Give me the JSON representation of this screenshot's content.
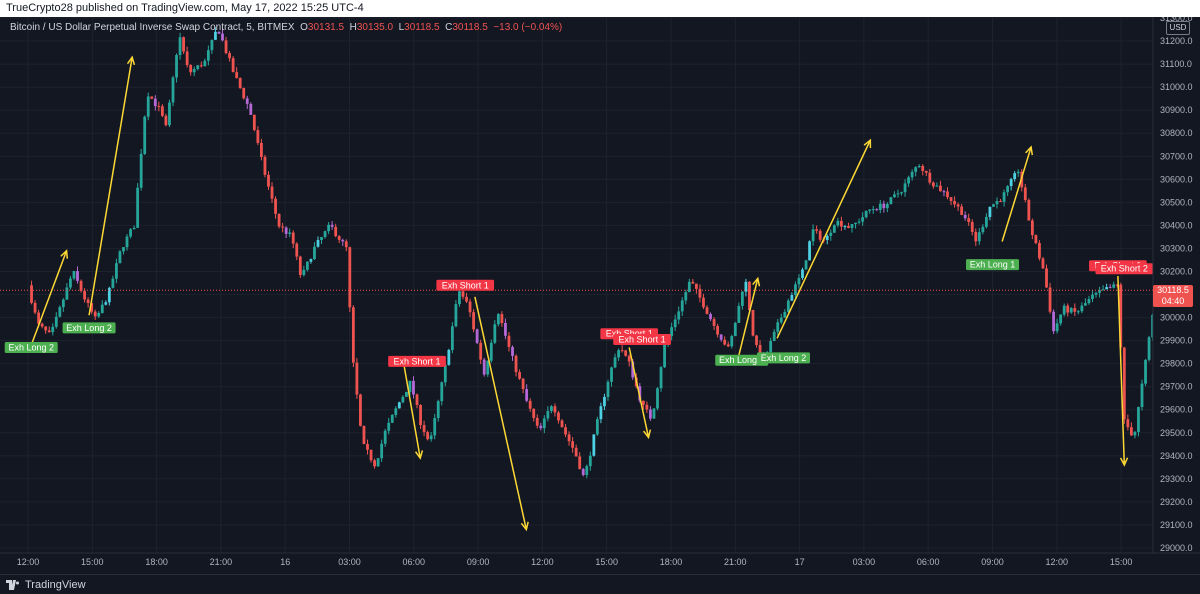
{
  "header": {
    "publisher_line": "TrueCrypto28 published on TradingView.com, May 17, 2022 15:25 UTC-4"
  },
  "legend": {
    "symbol": "Bitcoin / US Dollar Perpetual Inverse Swap Contract, 5, BITMEX",
    "o_label": "O",
    "o_value": "30131.5",
    "h_label": "H",
    "h_value": "30135.0",
    "l_label": "L",
    "l_value": "30118.5",
    "c_label": "C",
    "c_value": "30118.5",
    "change": "−13.0 (−0.04%)"
  },
  "currency": "USD",
  "last_price": {
    "value": "30118.5",
    "countdown": "04:40"
  },
  "footer": {
    "brand": "TradingView"
  },
  "colors": {
    "background": "#131722",
    "up": "#26a69a",
    "down": "#ef5350",
    "up_alt": "#4dd0e1",
    "down_alt": "#b469d6",
    "arrow": "#fdd835",
    "long_label": "#4caf50",
    "short_label": "#f23645"
  },
  "chart_data": {
    "type": "candlestick",
    "title": "Bitcoin / US Dollar Perpetual Inverse Swap Contract, 5, BITMEX",
    "ylim": [
      29000,
      31300
    ],
    "y_ticks": [
      "29000.0",
      "29100.0",
      "29200.0",
      "29300.0",
      "29400.0",
      "29500.0",
      "29600.0",
      "29700.0",
      "29800.0",
      "29900.0",
      "30000.0",
      "30100.0",
      "30200.0",
      "30300.0",
      "30400.0",
      "30500.0",
      "30600.0",
      "30700.0",
      "30800.0",
      "30900.0",
      "31000.0",
      "31100.0",
      "31200.0",
      "31300.0"
    ],
    "x_ticks": [
      "12:00",
      "15:00",
      "18:00",
      "21:00",
      "16",
      "03:00",
      "06:00",
      "09:00",
      "12:00",
      "15:00",
      "18:00",
      "21:00",
      "17",
      "03:00",
      "06:00",
      "09:00",
      "12:00",
      "15:00"
    ],
    "x_range": [
      0,
      17.6
    ],
    "price_path": [
      [
        0.0,
        30140
      ],
      [
        0.15,
        29970
      ],
      [
        0.35,
        29920
      ],
      [
        0.5,
        30040
      ],
      [
        0.7,
        30200
      ],
      [
        0.9,
        30070
      ],
      [
        1.05,
        29990
      ],
      [
        1.25,
        30100
      ],
      [
        1.45,
        30300
      ],
      [
        1.65,
        30400
      ],
      [
        1.85,
        30980
      ],
      [
        2.05,
        30900
      ],
      [
        2.15,
        30820
      ],
      [
        2.35,
        31230
      ],
      [
        2.5,
        31060
      ],
      [
        2.75,
        31110
      ],
      [
        2.95,
        31260
      ],
      [
        3.2,
        31060
      ],
      [
        3.45,
        30900
      ],
      [
        3.65,
        30660
      ],
      [
        3.9,
        30400
      ],
      [
        4.1,
        30350
      ],
      [
        4.25,
        30170
      ],
      [
        4.45,
        30300
      ],
      [
        4.7,
        30400
      ],
      [
        4.95,
        30300
      ],
      [
        5.05,
        29820
      ],
      [
        5.2,
        29450
      ],
      [
        5.4,
        29360
      ],
      [
        5.55,
        29500
      ],
      [
        5.75,
        29620
      ],
      [
        5.95,
        29720
      ],
      [
        6.1,
        29550
      ],
      [
        6.25,
        29450
      ],
      [
        6.5,
        29800
      ],
      [
        6.7,
        30120
      ],
      [
        6.85,
        30050
      ],
      [
        7.1,
        29750
      ],
      [
        7.3,
        30040
      ],
      [
        7.5,
        29850
      ],
      [
        7.75,
        29640
      ],
      [
        7.95,
        29500
      ],
      [
        8.15,
        29630
      ],
      [
        8.35,
        29500
      ],
      [
        8.5,
        29420
      ],
      [
        8.65,
        29300
      ],
      [
        8.85,
        29540
      ],
      [
        9.05,
        29760
      ],
      [
        9.2,
        29880
      ],
      [
        9.35,
        29800
      ],
      [
        9.55,
        29620
      ],
      [
        9.7,
        29560
      ],
      [
        9.9,
        29880
      ],
      [
        10.1,
        30020
      ],
      [
        10.3,
        30160
      ],
      [
        10.5,
        30060
      ],
      [
        10.7,
        29950
      ],
      [
        10.9,
        29860
      ],
      [
        11.05,
        30040
      ],
      [
        11.15,
        30180
      ],
      [
        11.3,
        29880
      ],
      [
        11.45,
        29820
      ],
      [
        11.65,
        29960
      ],
      [
        11.85,
        30090
      ],
      [
        12.05,
        30200
      ],
      [
        12.2,
        30380
      ],
      [
        12.4,
        30330
      ],
      [
        12.55,
        30420
      ],
      [
        12.8,
        30390
      ],
      [
        13.1,
        30470
      ],
      [
        13.35,
        30490
      ],
      [
        13.6,
        30560
      ],
      [
        13.85,
        30670
      ],
      [
        14.05,
        30590
      ],
      [
        14.3,
        30530
      ],
      [
        14.55,
        30450
      ],
      [
        14.75,
        30330
      ],
      [
        14.95,
        30480
      ],
      [
        15.15,
        30520
      ],
      [
        15.4,
        30640
      ],
      [
        15.6,
        30380
      ],
      [
        15.8,
        30200
      ],
      [
        15.95,
        29940
      ],
      [
        16.1,
        30040
      ],
      [
        16.3,
        30020
      ],
      [
        16.55,
        30090
      ],
      [
        16.75,
        30120
      ],
      [
        16.95,
        30140
      ],
      [
        17.05,
        29550
      ],
      [
        17.2,
        29480
      ],
      [
        17.35,
        29750
      ],
      [
        17.5,
        30030
      ],
      [
        17.6,
        30118.5
      ]
    ],
    "signals": [
      {
        "label": "Exh Long 2",
        "kind": "long",
        "x": 0.05,
        "price": 29870
      },
      {
        "label": "Exh Long 2",
        "kind": "long",
        "x": 0.95,
        "price": 29955
      },
      {
        "label": "Exh Short 1",
        "kind": "short",
        "x": 6.05,
        "price": 29810
      },
      {
        "label": "Exh Short 1",
        "kind": "short",
        "x": 6.8,
        "price": 30140
      },
      {
        "label": "Exh Short 1",
        "kind": "short",
        "x": 9.35,
        "price": 29930
      },
      {
        "label": "Exh Short 1",
        "kind": "short",
        "x": 9.55,
        "price": 29905
      },
      {
        "label": "Exh Long 1",
        "kind": "long",
        "x": 11.1,
        "price": 29815
      },
      {
        "label": "Exh Long 2",
        "kind": "long",
        "x": 11.75,
        "price": 29825
      },
      {
        "label": "Exh Long 1",
        "kind": "long",
        "x": 15.0,
        "price": 30230
      },
      {
        "label": "Exh Short 1",
        "kind": "short",
        "x": 16.95,
        "price": 30225
      },
      {
        "label": "Exh Short 2",
        "kind": "short",
        "x": 17.05,
        "price": 30212
      }
    ],
    "arrows": [
      {
        "from": [
          0.05,
          29880
        ],
        "to": [
          0.6,
          30290
        ]
      },
      {
        "from": [
          0.95,
          30010
        ],
        "to": [
          1.62,
          31130
        ]
      },
      {
        "from": [
          5.85,
          29790
        ],
        "to": [
          6.1,
          29390
        ]
      },
      {
        "from": [
          6.95,
          30090
        ],
        "to": [
          7.75,
          29080
        ]
      },
      {
        "from": [
          9.35,
          29870
        ],
        "to": [
          9.65,
          29480
        ]
      },
      {
        "from": [
          11.05,
          29830
        ],
        "to": [
          11.35,
          30170
        ]
      },
      {
        "from": [
          11.65,
          29910
        ],
        "to": [
          13.1,
          30770
        ]
      },
      {
        "from": [
          15.15,
          30330
        ],
        "to": [
          15.6,
          30740
        ]
      },
      {
        "from": [
          16.95,
          30180
        ],
        "to": [
          17.05,
          29360
        ]
      }
    ]
  }
}
